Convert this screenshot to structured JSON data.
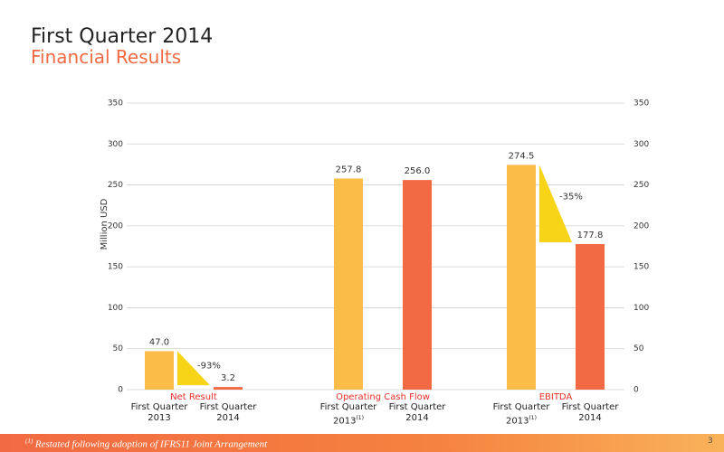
{
  "chart_data": {
    "type": "bar",
    "title": "First Quarter 2014",
    "subtitle": "Financial Results",
    "y_label": "Million USD",
    "categories": [
      "Net Result",
      "Operating Cash Flow",
      "EBITDA"
    ],
    "series": [
      {
        "name": "First Quarter 2013",
        "color": "#fbbd47",
        "values": [
          47.0,
          257.8,
          274.5
        ],
        "value_labels": [
          "47.0",
          "257.8",
          "274.5"
        ],
        "note_marks": [
          null,
          "(1)",
          "(1)"
        ]
      },
      {
        "name": "First Quarter 2014",
        "color": "#f26a43",
        "values": [
          3.2,
          256.0,
          177.8
        ],
        "value_labels": [
          "3.2",
          "256.0",
          "177.8"
        ]
      }
    ],
    "annotations": [
      {
        "category": 0,
        "text": "-93%",
        "color": "#f7d417"
      },
      {
        "category": 2,
        "text": "-35%",
        "color": "#f7d417"
      }
    ],
    "ylim": [
      0,
      350
    ],
    "yticks": [
      0,
      50,
      100,
      150,
      200,
      250,
      300,
      350
    ],
    "grid": true,
    "right_axis": true
  },
  "footer": {
    "note_marker": "(1)",
    "note": "Restated following adoption of IFRS11 Joint Arrangement",
    "page": "3"
  }
}
